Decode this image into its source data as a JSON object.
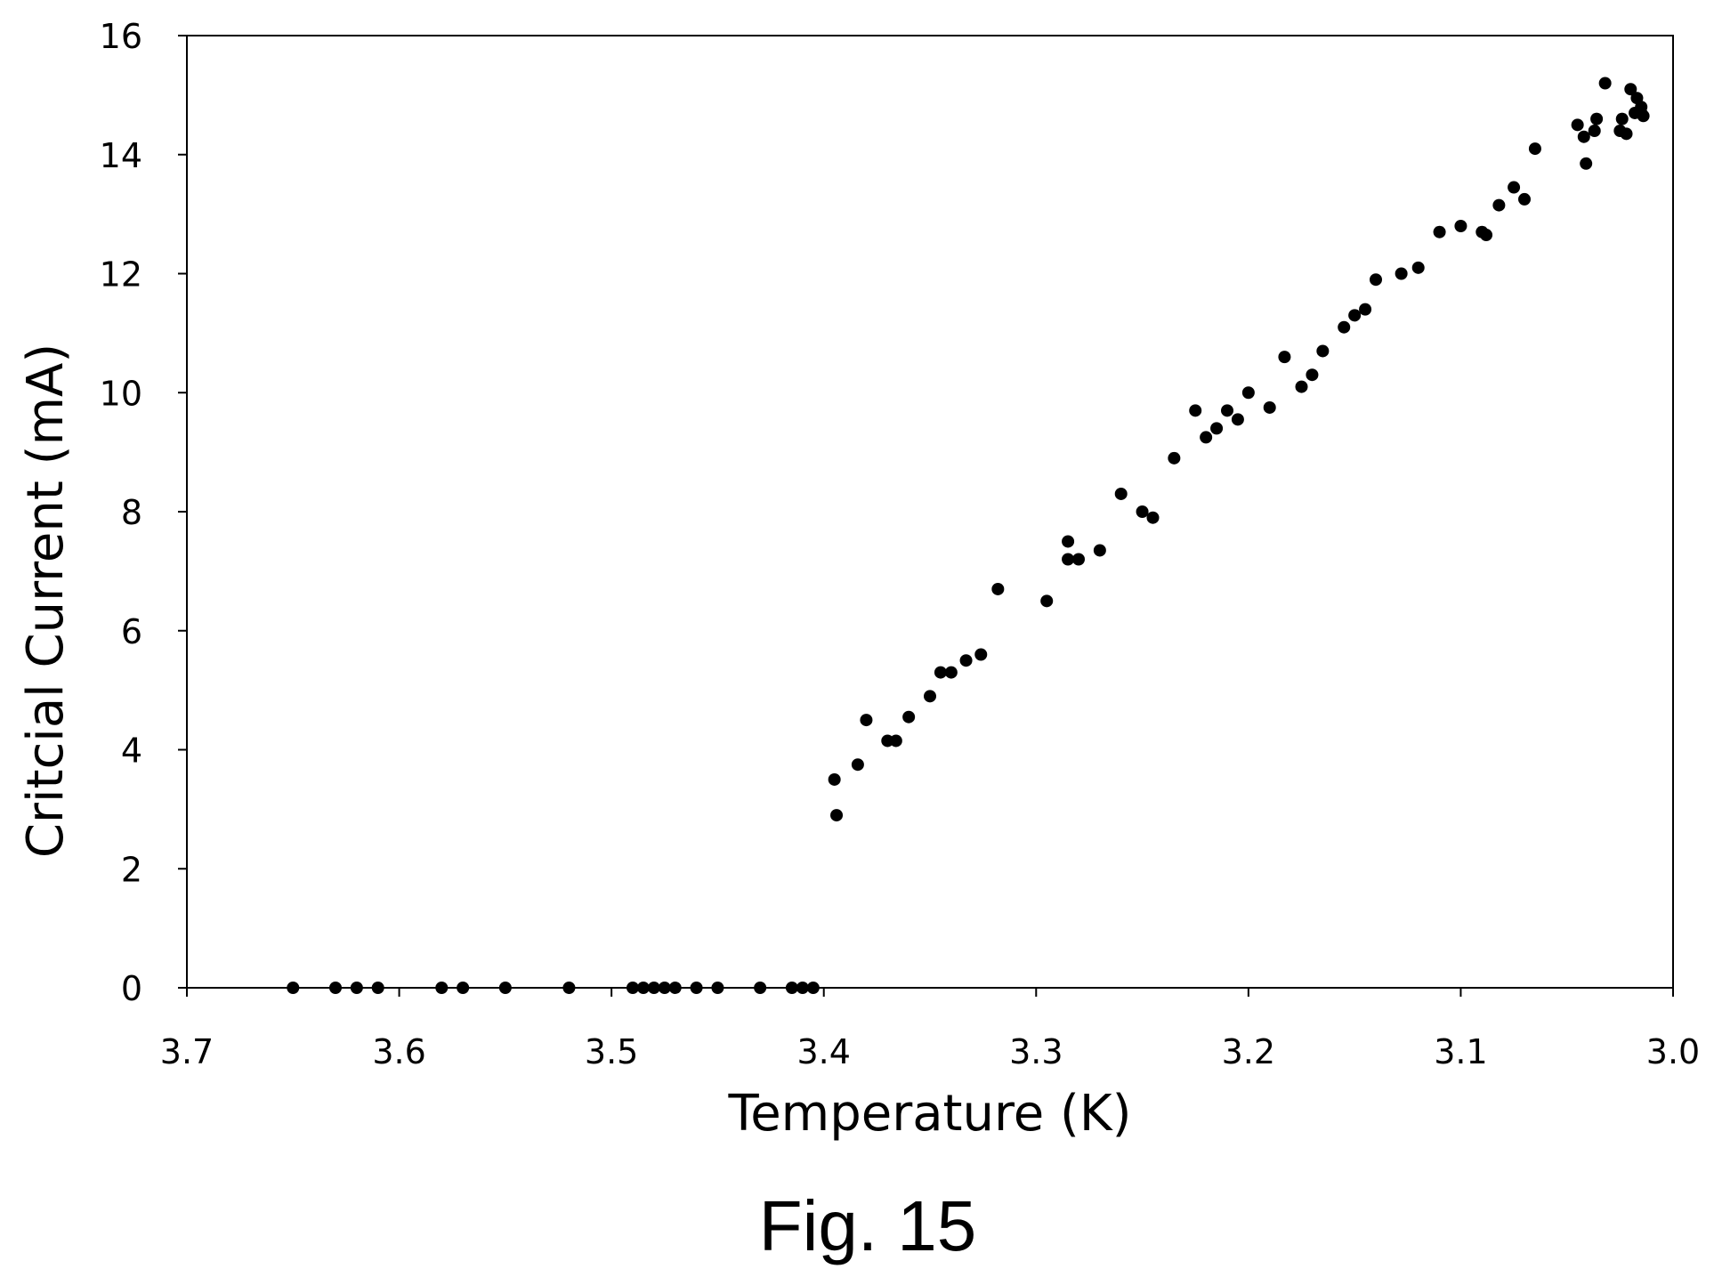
{
  "chart_data": {
    "type": "scatter",
    "xlabel": "Temperature (K)",
    "ylabel": "Critcial Current (mA)",
    "xlim": [
      3.7,
      3.0
    ],
    "ylim": [
      0,
      16
    ],
    "x_reversed": true,
    "x_ticks": [
      "3.7",
      "3.6",
      "3.5",
      "3.4",
      "3.3",
      "3.2",
      "3.1",
      "3.0"
    ],
    "y_ticks": [
      "0",
      "2",
      "4",
      "6",
      "8",
      "10",
      "12",
      "14",
      "16"
    ],
    "grid": false,
    "marker_color": "#000000",
    "series": [
      {
        "points": [
          [
            3.65,
            0
          ],
          [
            3.63,
            0
          ],
          [
            3.62,
            0
          ],
          [
            3.61,
            0
          ],
          [
            3.58,
            0
          ],
          [
            3.57,
            0
          ],
          [
            3.55,
            0
          ],
          [
            3.52,
            0
          ],
          [
            3.49,
            0
          ],
          [
            3.485,
            0
          ],
          [
            3.48,
            0
          ],
          [
            3.475,
            0
          ],
          [
            3.47,
            0
          ],
          [
            3.46,
            0
          ],
          [
            3.45,
            0
          ],
          [
            3.43,
            0
          ],
          [
            3.415,
            0
          ],
          [
            3.41,
            0
          ],
          [
            3.405,
            0
          ],
          [
            3.395,
            3.5
          ],
          [
            3.394,
            2.9
          ],
          [
            3.384,
            3.75
          ],
          [
            3.38,
            4.5
          ],
          [
            3.37,
            4.15
          ],
          [
            3.366,
            4.15
          ],
          [
            3.36,
            4.55
          ],
          [
            3.35,
            4.9
          ],
          [
            3.345,
            5.3
          ],
          [
            3.34,
            5.3
          ],
          [
            3.333,
            5.5
          ],
          [
            3.326,
            5.6
          ],
          [
            3.318,
            6.7
          ],
          [
            3.295,
            6.5
          ],
          [
            3.285,
            7.5
          ],
          [
            3.285,
            7.2
          ],
          [
            3.28,
            7.2
          ],
          [
            3.27,
            7.35
          ],
          [
            3.26,
            8.3
          ],
          [
            3.25,
            8.0
          ],
          [
            3.245,
            7.9
          ],
          [
            3.235,
            8.9
          ],
          [
            3.225,
            9.7
          ],
          [
            3.22,
            9.25
          ],
          [
            3.215,
            9.4
          ],
          [
            3.21,
            9.7
          ],
          [
            3.205,
            9.55
          ],
          [
            3.2,
            10.0
          ],
          [
            3.19,
            9.75
          ],
          [
            3.183,
            10.6
          ],
          [
            3.175,
            10.1
          ],
          [
            3.17,
            10.3
          ],
          [
            3.165,
            10.7
          ],
          [
            3.155,
            11.1
          ],
          [
            3.15,
            11.3
          ],
          [
            3.145,
            11.4
          ],
          [
            3.14,
            11.9
          ],
          [
            3.128,
            12.0
          ],
          [
            3.12,
            12.1
          ],
          [
            3.11,
            12.7
          ],
          [
            3.1,
            12.8
          ],
          [
            3.09,
            12.7
          ],
          [
            3.088,
            12.65
          ],
          [
            3.082,
            13.15
          ],
          [
            3.075,
            13.45
          ],
          [
            3.07,
            13.25
          ],
          [
            3.065,
            14.1
          ],
          [
            3.045,
            14.5
          ],
          [
            3.042,
            14.3
          ],
          [
            3.041,
            13.85
          ],
          [
            3.037,
            14.4
          ],
          [
            3.036,
            14.6
          ],
          [
            3.032,
            15.2
          ],
          [
            3.025,
            14.4
          ],
          [
            3.024,
            14.6
          ],
          [
            3.022,
            14.35
          ],
          [
            3.02,
            15.1
          ],
          [
            3.018,
            14.7
          ],
          [
            3.017,
            14.95
          ],
          [
            3.015,
            14.8
          ],
          [
            3.015,
            14.7
          ],
          [
            3.014,
            14.65
          ]
        ]
      }
    ]
  },
  "caption": "Fig. 15"
}
